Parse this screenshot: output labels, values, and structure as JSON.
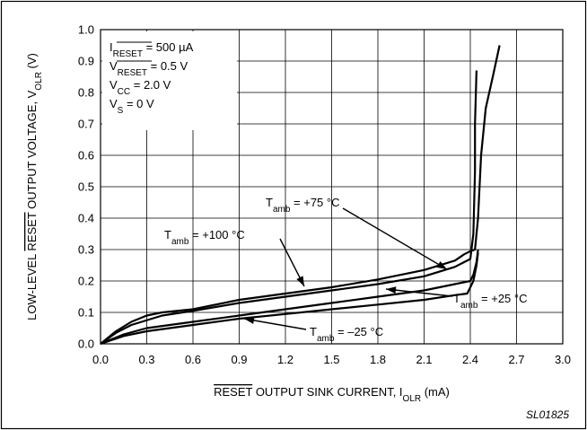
{
  "chart_data": {
    "type": "line",
    "xlabel": {
      "overline": "RESET",
      "main": " OUTPUT SINK CURRENT, I",
      "sub": "OLR",
      "unit": " (mA)"
    },
    "ylabel": {
      "pre": "LOW-LEVEL ",
      "overline": "RESET",
      "main": " OUTPUT VOLTAGE, V",
      "sub": "OLR",
      "unit": " (V)"
    },
    "xlim": [
      0.0,
      3.0
    ],
    "ylim": [
      0.0,
      1.0
    ],
    "x_ticks": [
      0.0,
      0.3,
      0.6,
      0.9,
      1.2,
      1.5,
      1.8,
      2.1,
      2.4,
      2.7,
      3.0
    ],
    "x_tick_labels": [
      "0.0",
      "0.3",
      "0.6",
      "0.9",
      "1.2",
      "1.5",
      "1.8",
      "2.1",
      "2.4",
      "2.7",
      "3.0"
    ],
    "y_ticks": [
      0.0,
      0.1,
      0.2,
      0.3,
      0.4,
      0.5,
      0.6,
      0.7,
      0.8,
      0.9,
      1.0
    ],
    "y_tick_labels": [
      "0.0",
      "0.1",
      "0.2",
      "0.3",
      "0.4",
      "0.5",
      "0.6",
      "0.7",
      "0.8",
      "0.9",
      "1.0"
    ],
    "grid": true,
    "conditions": [
      {
        "main": "I",
        "sub": "RESET",
        "overline_sub": true,
        "rest": " = 500 µA"
      },
      {
        "main": "V",
        "sub": "RESET",
        "overline_sub": true,
        "rest": " = 0.5 V"
      },
      {
        "main": "V",
        "sub": "CC",
        "overline_sub": false,
        "rest": " = 2.0 V"
      },
      {
        "main": "V",
        "sub": "S",
        "overline_sub": false,
        "rest": " = 0 V"
      }
    ],
    "series": [
      {
        "annotation": {
          "main": "T",
          "sub": "amb",
          "rest": " = +100 °C"
        },
        "points": [
          [
            0.0,
            0.0
          ],
          [
            0.1,
            0.04
          ],
          [
            0.2,
            0.07
          ],
          [
            0.3,
            0.09
          ],
          [
            0.4,
            0.1
          ],
          [
            0.6,
            0.11
          ],
          [
            0.9,
            0.14
          ],
          [
            1.2,
            0.16
          ],
          [
            1.5,
            0.18
          ],
          [
            1.8,
            0.205
          ],
          [
            2.1,
            0.235
          ],
          [
            2.3,
            0.265
          ],
          [
            2.36,
            0.285
          ],
          [
            2.4,
            0.295
          ],
          [
            2.43,
            0.3
          ],
          [
            2.45,
            0.4
          ],
          [
            2.47,
            0.6
          ],
          [
            2.5,
            0.75
          ],
          [
            2.55,
            0.86
          ],
          [
            2.59,
            0.95
          ]
        ]
      },
      {
        "annotation": {
          "main": "T",
          "sub": "amb",
          "rest": " = +75 °C"
        },
        "points": [
          [
            0.0,
            0.0
          ],
          [
            0.1,
            0.035
          ],
          [
            0.2,
            0.06
          ],
          [
            0.4,
            0.09
          ],
          [
            0.6,
            0.105
          ],
          [
            0.9,
            0.13
          ],
          [
            1.2,
            0.15
          ],
          [
            1.5,
            0.17
          ],
          [
            1.8,
            0.19
          ],
          [
            2.1,
            0.215
          ],
          [
            2.3,
            0.245
          ],
          [
            2.36,
            0.26
          ],
          [
            2.4,
            0.27
          ],
          [
            2.42,
            0.35
          ],
          [
            2.43,
            0.55
          ],
          [
            2.43,
            0.7
          ],
          [
            2.44,
            0.87
          ]
        ]
      },
      {
        "annotation": {
          "main": "T",
          "sub": "amb",
          "rest": " = +25 °C"
        },
        "points": [
          [
            0.0,
            0.0
          ],
          [
            0.15,
            0.03
          ],
          [
            0.3,
            0.05
          ],
          [
            0.6,
            0.07
          ],
          [
            0.9,
            0.09
          ],
          [
            1.2,
            0.11
          ],
          [
            1.5,
            0.13
          ],
          [
            1.8,
            0.15
          ],
          [
            2.1,
            0.17
          ],
          [
            2.3,
            0.19
          ],
          [
            2.4,
            0.2
          ],
          [
            2.42,
            0.22
          ],
          [
            2.44,
            0.26
          ],
          [
            2.45,
            0.3
          ]
        ]
      },
      {
        "annotation": {
          "main": "T",
          "sub": "amb",
          "rest": " = –25 °C"
        },
        "points": [
          [
            0.0,
            0.0
          ],
          [
            0.15,
            0.025
          ],
          [
            0.3,
            0.04
          ],
          [
            0.6,
            0.06
          ],
          [
            0.9,
            0.08
          ],
          [
            1.2,
            0.095
          ],
          [
            1.5,
            0.11
          ],
          [
            1.8,
            0.125
          ],
          [
            2.1,
            0.14
          ],
          [
            2.3,
            0.155
          ],
          [
            2.38,
            0.16
          ],
          [
            2.42,
            0.2
          ],
          [
            2.44,
            0.25
          ],
          [
            2.45,
            0.29
          ]
        ]
      }
    ]
  },
  "figure_code": "SL01825",
  "colors": {
    "line": "#000000",
    "grid": "#000000",
    "background": "#ffffff"
  }
}
